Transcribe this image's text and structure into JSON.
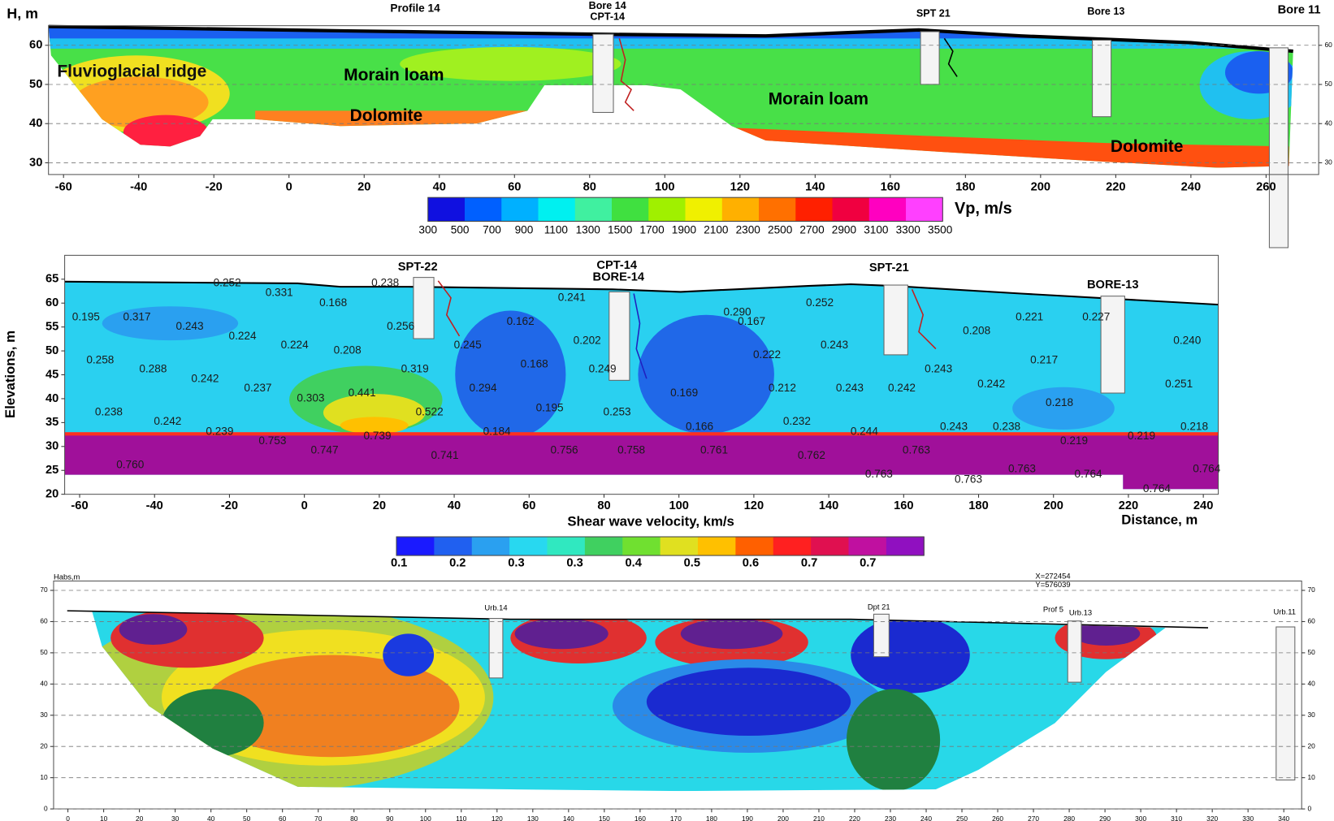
{
  "chart_data": [
    {
      "type": "contour",
      "title": "Profile 14",
      "ylabel": "H, m",
      "xlim": [
        -64,
        274
      ],
      "ylim": [
        27,
        65
      ],
      "xticks": [
        -60,
        -40,
        -20,
        0,
        20,
        40,
        60,
        80,
        100,
        120,
        140,
        160,
        180,
        200,
        220,
        240,
        260
      ],
      "yticks": [
        30,
        40,
        50,
        60
      ],
      "y2lim": [
        27,
        65
      ],
      "y2ticks": [
        30,
        40,
        50,
        60
      ],
      "grid": true,
      "annotations": [
        "Bore 14",
        "CPT-14",
        "SPT 21",
        "Bore 13",
        "Bore 11"
      ],
      "regions": [
        "Fluvioglacial ridge",
        "Morain loam",
        "Dolomite",
        "Morain loam",
        "Dolomite"
      ],
      "colorbar": {
        "label": "Vp, m/s",
        "ticks": [
          300,
          500,
          700,
          900,
          1100,
          1300,
          1500,
          1700,
          1900,
          2100,
          2300,
          2500,
          2700,
          2900,
          3100,
          3300,
          3500
        ],
        "colors": [
          "#1010e0",
          "#0060ff",
          "#00b0ff",
          "#00f0f0",
          "#40f0a0",
          "#40e040",
          "#a0f000",
          "#f0f000",
          "#ffb000",
          "#ff7000",
          "#ff2000",
          "#f00040",
          "#ff00c0",
          "#ff40ff"
        ]
      }
    },
    {
      "type": "contour",
      "ylabel": "Elevations, m",
      "xlabel": "Distance, m",
      "xlim": [
        -64,
        244
      ],
      "ylim": [
        20,
        70
      ],
      "xticks": [
        -60,
        -40,
        -20,
        0,
        20,
        40,
        60,
        80,
        100,
        120,
        140,
        160,
        180,
        200,
        220,
        240
      ],
      "yticks": [
        20,
        25,
        30,
        35,
        40,
        45,
        50,
        55,
        60,
        65
      ],
      "grid": false,
      "annotations": [
        "SPT-22",
        "CPT-14",
        "BORE-14",
        "SPT-21",
        "BORE-13"
      ],
      "points": {
        "x": [
          -24.3,
          17.9,
          -10.4,
          4.0,
          67.7,
          111.9,
          133.9,
          -62.0,
          -48.4,
          -34.3,
          22.0,
          54.0,
          115.7,
          175.8,
          189.9,
          207.7,
          -20.2,
          -6.3,
          7.8,
          39.9,
          71.8,
          137.8,
          232.0,
          -58.2,
          -44.1,
          57.7,
          75.9,
          119.8,
          193.8,
          165.6,
          25.8,
          -30.2,
          -16.1,
          11.7,
          -2.0,
          44.0,
          97.7,
          123.9,
          141.9,
          155.8,
          179.7,
          229.8,
          197.9,
          -55.9,
          -40.2,
          29.7,
          61.8,
          79.8,
          101.8,
          127.8,
          -26.3,
          47.7,
          145.8,
          169.7,
          183.8,
          233.9,
          -12.2,
          15.8,
          201.8,
          219.8,
          1.7,
          33.8,
          65.7,
          83.6,
          105.7,
          131.7,
          159.7,
          -50.2,
          149.7,
          187.9,
          205.6,
          173.6,
          237.2,
          223.9
        ],
        "y": [
          64.1,
          64.1,
          62.1,
          60.0,
          61.1,
          58.0,
          60.0,
          57.0,
          57.0,
          55.0,
          55.0,
          56.1,
          56.1,
          54.1,
          57.0,
          57.0,
          53.0,
          51.1,
          50.0,
          51.1,
          52.1,
          51.1,
          52.1,
          48.0,
          46.1,
          47.1,
          46.1,
          49.1,
          48.0,
          46.1,
          46.1,
          44.1,
          42.1,
          41.1,
          40.0,
          42.1,
          41.1,
          42.1,
          42.1,
          42.1,
          43.0,
          43.0,
          39.1,
          37.1,
          35.2,
          37.1,
          38.0,
          37.1,
          34.1,
          35.2,
          33.0,
          33.0,
          33.0,
          34.1,
          34.1,
          34.1,
          31.1,
          32.1,
          31.1,
          32.1,
          29.1,
          28.0,
          29.1,
          29.1,
          29.1,
          28.0,
          29.1,
          26.1,
          24.1,
          25.2,
          24.1,
          23.0,
          25.2,
          21.1
        ],
        "values": [
          0.252,
          0.238,
          0.331,
          0.168,
          0.241,
          0.29,
          0.252,
          0.195,
          0.317,
          0.243,
          0.256,
          0.162,
          0.167,
          0.208,
          0.221,
          0.227,
          0.224,
          0.224,
          0.208,
          0.245,
          0.202,
          0.243,
          0.24,
          0.258,
          0.288,
          0.168,
          0.249,
          0.222,
          0.217,
          0.243,
          0.319,
          0.242,
          0.237,
          0.441,
          0.303,
          0.294,
          0.169,
          0.212,
          0.243,
          0.242,
          0.242,
          0.251,
          0.218,
          0.238,
          0.242,
          0.522,
          0.195,
          0.253,
          0.166,
          0.232,
          0.239,
          0.184,
          0.244,
          0.243,
          0.238,
          0.218,
          0.753,
          0.739,
          0.219,
          0.219,
          0.747,
          0.741,
          0.756,
          0.758,
          0.761,
          0.762,
          0.763,
          0.76,
          0.763,
          0.763,
          0.764,
          0.763,
          0.764,
          0.764
        ],
        "value_labels": [
          "0.252",
          "0.238",
          "0.331",
          "0.168",
          "0.241",
          "0.290",
          "0.252",
          "0.195",
          "0.317",
          "0.243",
          "0.256",
          "0.162",
          "0.167",
          "0.208",
          "0.221",
          "0.227",
          "0.224",
          "0.224",
          "0.208",
          "0.245",
          "0.202",
          "0.243",
          "0.240",
          "0.258",
          "0.288",
          "0.168",
          "0.249",
          "0.222",
          "0.217",
          "0.243",
          "0.319",
          "0.242",
          "0.237",
          "0.441",
          "0.303",
          "0.294",
          "0.169",
          "0.212",
          "0.243",
          "0.242",
          "0.242",
          "0.251",
          "0.218",
          "0.238",
          "0.242",
          "0.522",
          "0.195",
          "0.253",
          "0.166",
          "0.232",
          "0.239",
          "0.184",
          "0.244",
          "0.243",
          "0.238",
          "0.218",
          "0.753",
          "0.739",
          "0.219",
          "0.219",
          "0.747",
          "0.741",
          "0.756",
          "0.758",
          "0.761",
          "0.762",
          "0.763",
          "0.760",
          "0.763",
          "0.763",
          "0.764",
          "0.763",
          "0.764",
          "0.764"
        ]
      },
      "colorbar": {
        "label": "Shear wave velocity, km/s",
        "tick_labels": [
          "0.1",
          "0.2",
          "0.3",
          "0.3",
          "0.4",
          "0.5",
          "0.6",
          "0.7",
          "0.7"
        ],
        "colors": [
          "#1a1aff",
          "#2060f0",
          "#2aa0f0",
          "#28d8f0",
          "#30e8c0",
          "#40d060",
          "#70e030",
          "#e0e020",
          "#ffc000",
          "#ff6000",
          "#ff2020",
          "#e01050",
          "#c010a0",
          "#9010c0"
        ]
      }
    },
    {
      "type": "contour",
      "ylabel": "Habs,m",
      "xlim": [
        -4,
        345
      ],
      "ylim": [
        0,
        73
      ],
      "xticks": [
        0,
        10,
        20,
        30,
        40,
        50,
        60,
        70,
        80,
        90,
        100,
        110,
        120,
        130,
        140,
        150,
        160,
        170,
        180,
        190,
        200,
        210,
        220,
        230,
        240,
        250,
        260,
        270,
        280,
        290,
        300,
        310,
        320,
        330,
        340
      ],
      "yticks": [
        0,
        10,
        20,
        30,
        40,
        50,
        60,
        70
      ],
      "y2lim": [
        0,
        73
      ],
      "y2ticks": [
        0,
        10,
        20,
        30,
        40,
        50,
        60,
        70
      ],
      "grid": true,
      "annotations": [
        "Urb.14",
        "Dpt 21",
        "Prof 5",
        "Urb.13",
        "Urb.11",
        "X=272454",
        "Y=576039"
      ]
    }
  ]
}
